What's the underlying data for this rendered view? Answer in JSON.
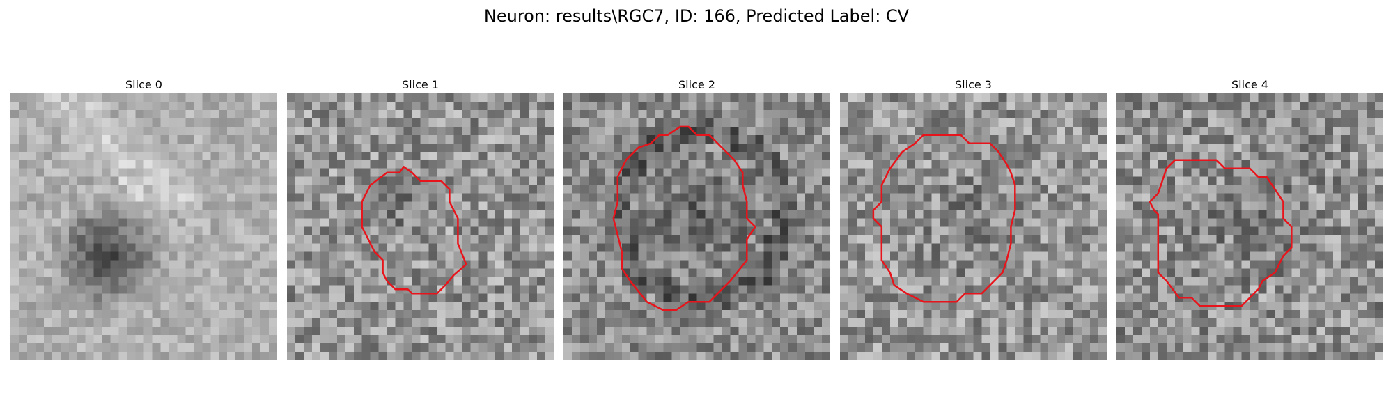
{
  "figure": {
    "title": "Neuron: results\\RGC7, ID: 166, Predicted Label: CV"
  },
  "colormap": "gray",
  "contour_color": "#e8141b",
  "slices": [
    {
      "title": "Slice 0",
      "has_contour": false
    },
    {
      "title": "Slice 1",
      "has_contour": true
    },
    {
      "title": "Slice 2",
      "has_contour": true
    },
    {
      "title": "Slice 3",
      "has_contour": true
    },
    {
      "title": "Slice 4",
      "has_contour": true
    }
  ]
}
